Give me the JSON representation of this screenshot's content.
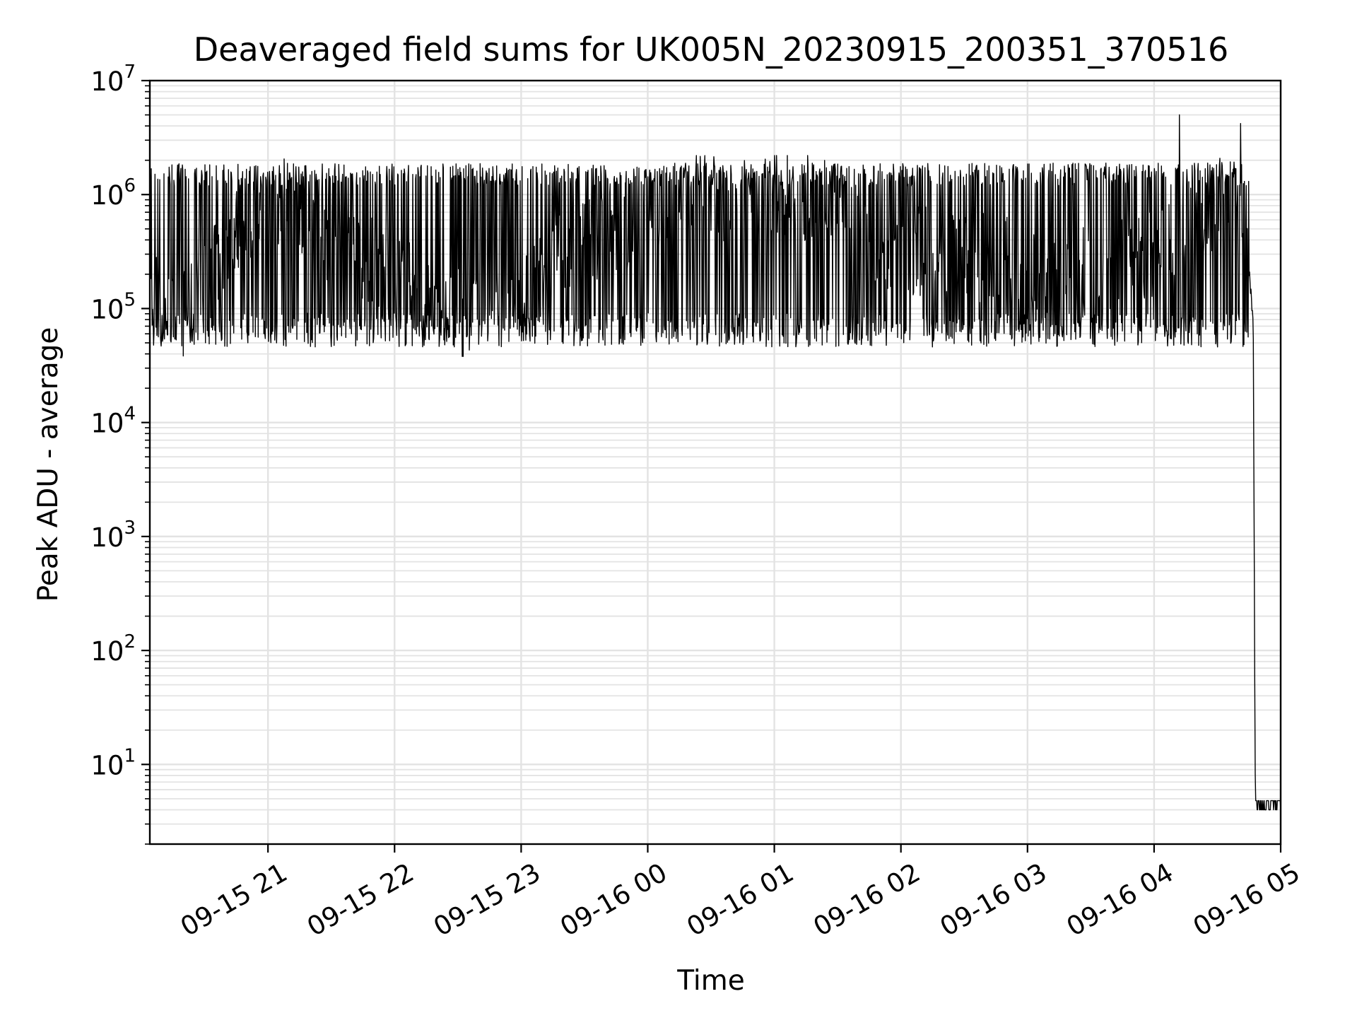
{
  "chart_data": {
    "type": "line",
    "title": "Deaveraged field sums for UK005N_20230915_200351_370516",
    "xlabel": "Time",
    "ylabel": "Peak ADU - average",
    "yscale": "log",
    "ylim": [
      2,
      10000000
    ],
    "xlim": [
      "2023-09-15 20:04",
      "2023-09-16 05:00"
    ],
    "grid": true,
    "x_tick_labels": [
      "09-15 21",
      "09-15 22",
      "09-15 23",
      "09-16 00",
      "09-16 01",
      "09-16 02",
      "09-16 03",
      "09-16 04",
      "09-16 05"
    ],
    "y_tick_labels": [
      {
        "base": "10",
        "exp": "1"
      },
      {
        "base": "10",
        "exp": "2"
      },
      {
        "base": "10",
        "exp": "3"
      },
      {
        "base": "10",
        "exp": "4"
      },
      {
        "base": "10",
        "exp": "5"
      },
      {
        "base": "10",
        "exp": "6"
      },
      {
        "base": "10",
        "exp": "7"
      }
    ],
    "series": [
      {
        "color": "#000000",
        "x": [
          "2023-09-15 20:04",
          "2023-09-15 20:10",
          "2023-09-15 20:15",
          "2023-09-15 20:20",
          "2023-09-15 20:30",
          "2023-09-15 20:45",
          "2023-09-15 21:00",
          "2023-09-15 21:15",
          "2023-09-15 21:30",
          "2023-09-15 21:45",
          "2023-09-15 22:00",
          "2023-09-15 22:15",
          "2023-09-15 22:30",
          "2023-09-15 22:45",
          "2023-09-15 23:00",
          "2023-09-15 23:15",
          "2023-09-15 23:30",
          "2023-09-15 23:45",
          "2023-09-16 00:00",
          "2023-09-16 00:15",
          "2023-09-16 00:30",
          "2023-09-16 00:45",
          "2023-09-16 01:00",
          "2023-09-16 01:15",
          "2023-09-16 01:30",
          "2023-09-16 01:45",
          "2023-09-16 02:00",
          "2023-09-16 02:15",
          "2023-09-16 02:30",
          "2023-09-16 02:45",
          "2023-09-16 03:00",
          "2023-09-16 03:15",
          "2023-09-16 03:30",
          "2023-09-16 03:45",
          "2023-09-16 04:00",
          "2023-09-16 04:10",
          "2023-09-16 04:20",
          "2023-09-16 04:30",
          "2023-09-16 04:38",
          "2023-09-16 04:42",
          "2023-09-16 04:45",
          "2023-09-16 04:47",
          "2023-09-16 04:48",
          "2023-09-16 05:00"
        ],
        "y": [
          180000,
          100000,
          85000,
          90000,
          150000,
          500000,
          900000,
          800000,
          400000,
          300000,
          200000,
          120000,
          90000,
          85000,
          100000,
          300000,
          400000,
          500000,
          600000,
          900000,
          1000000,
          950000,
          1000000,
          900000,
          800000,
          400000,
          350000,
          300000,
          250000,
          300000,
          250000,
          220000,
          200000,
          250000,
          300000,
          350000,
          500000,
          900000,
          1200000,
          900000,
          200000,
          80000,
          4,
          4
        ]
      }
    ]
  }
}
